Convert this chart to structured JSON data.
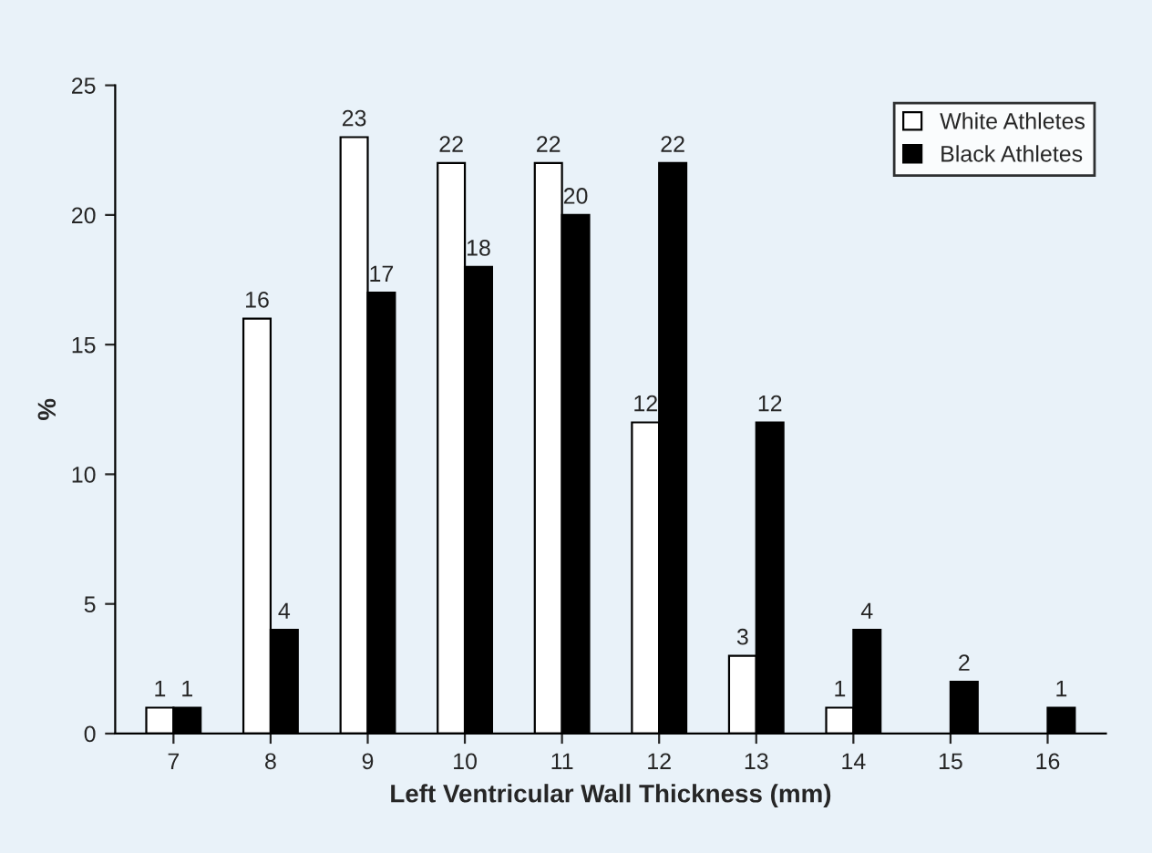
{
  "chart_data": {
    "type": "bar",
    "xlabel": "Left Ventricular Wall Thickness (mm)",
    "ylabel": "%",
    "categories": [
      "7",
      "8",
      "9",
      "10",
      "11",
      "12",
      "13",
      "14",
      "15",
      "16"
    ],
    "series": [
      {
        "name": "White Athletes",
        "color": "#ffffff",
        "values": [
          1,
          16,
          23,
          22,
          22,
          12,
          3,
          1,
          null,
          null
        ]
      },
      {
        "name": "Black Athletes",
        "color": "#000000",
        "values": [
          1,
          4,
          17,
          18,
          20,
          22,
          12,
          4,
          2,
          1
        ]
      }
    ],
    "ylim": [
      0,
      25
    ],
    "yticks": [
      0,
      5,
      10,
      15,
      20,
      25
    ],
    "data_labels": true,
    "legend": "top right",
    "grid": false
  }
}
